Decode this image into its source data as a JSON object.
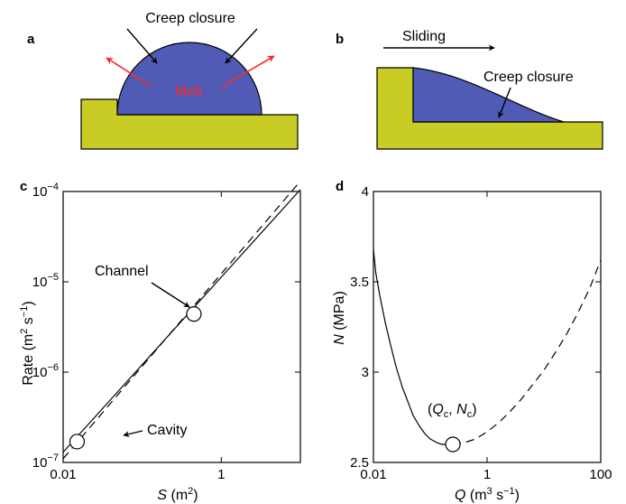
{
  "colors": {
    "ice": "#4f5bb5",
    "bed": "#c8cc25",
    "melt_arrow": "#ff2a2a",
    "line": "#000000"
  },
  "panels": {
    "a": {
      "label": "a",
      "creep_closure": "Creep closure",
      "melt": "Melt"
    },
    "b": {
      "label": "b",
      "sliding": "Sliding",
      "creep_closure": "Creep closure"
    }
  },
  "chart_data": [
    {
      "panel": "c",
      "type": "line",
      "xscale": "log",
      "yscale": "log",
      "xlim": [
        0.01,
        10
      ],
      "ylim": [
        1e-07,
        0.0001
      ],
      "xlabel": "S (m²)",
      "ylabel": "Rate (m² s⁻¹)",
      "xticks": [
        {
          "value": 0.01,
          "label": "0.01"
        },
        {
          "value": 1,
          "label": "1"
        }
      ],
      "yticks": [
        {
          "value": 1e-07,
          "base": "10",
          "exp": "−7"
        },
        {
          "value": 1e-06,
          "base": "10",
          "exp": "−6"
        },
        {
          "value": 1e-05,
          "base": "10",
          "exp": "−5"
        },
        {
          "value": 0.0001,
          "base": "10",
          "exp": "−4"
        }
      ],
      "series": [
        {
          "style": "solid",
          "x": [
            0.01,
            10
          ],
          "y": [
            1.3e-07,
            0.000105
          ]
        },
        {
          "style": "dashed",
          "x": [
            0.01,
            10
          ],
          "y": [
            1.1e-07,
            0.00013
          ]
        }
      ],
      "points": [
        {
          "label": "Channel",
          "x": 0.45,
          "y": 4.4e-06
        },
        {
          "label": "Cavity",
          "x": 0.015,
          "y": 1.7e-07
        }
      ]
    },
    {
      "panel": "d",
      "type": "line",
      "xscale": "log",
      "xlim": [
        0.01,
        100
      ],
      "ylim": [
        2.5,
        4
      ],
      "xlabel": "Q (m³ s⁻¹)",
      "ylabel": "N (MPa)",
      "xticks": [
        {
          "value": 0.01,
          "label": "0.01"
        },
        {
          "value": 1,
          "label": "1"
        },
        {
          "value": 100,
          "label": "100"
        }
      ],
      "yticks": [
        {
          "value": 2.5,
          "label": "2.5"
        },
        {
          "value": 3,
          "label": "3"
        },
        {
          "value": 3.5,
          "label": "3.5"
        },
        {
          "value": 4,
          "label": "4"
        }
      ],
      "series": [
        {
          "style": "solid",
          "x": [
            0.01,
            0.011,
            0.013,
            0.016,
            0.02,
            0.025,
            0.032,
            0.04,
            0.05,
            0.065,
            0.08,
            0.1,
            0.13,
            0.16,
            0.2,
            0.25
          ],
          "y": [
            3.68,
            3.55,
            3.42,
            3.28,
            3.15,
            3.03,
            2.92,
            2.84,
            2.76,
            2.7,
            2.66,
            2.63,
            2.61,
            2.6,
            2.6,
            2.6
          ]
        },
        {
          "style": "dashed",
          "x": [
            0.25,
            0.4,
            0.63,
            1,
            1.6,
            2.5,
            4,
            6.3,
            10,
            16,
            25,
            40,
            63,
            100
          ],
          "y": [
            2.6,
            2.61,
            2.63,
            2.67,
            2.72,
            2.78,
            2.85,
            2.93,
            3.01,
            3.11,
            3.21,
            3.33,
            3.46,
            3.62
          ]
        }
      ],
      "points": [
        {
          "label_Q": "Q",
          "label_Q_sub": "c",
          "label_N": "N",
          "label_N_sub": "c",
          "x": 0.25,
          "y": 2.6
        }
      ]
    }
  ]
}
